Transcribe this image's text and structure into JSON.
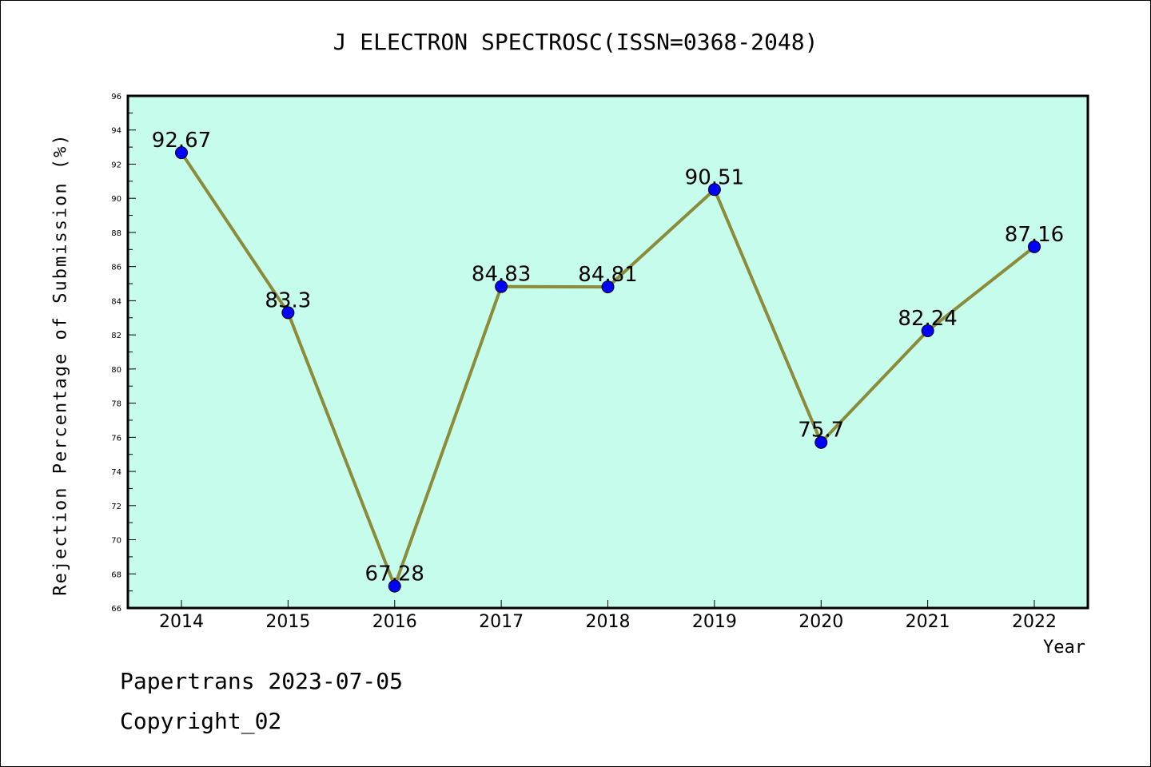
{
  "chart_data": {
    "type": "line",
    "title": "J ELECTRON SPECTROSC(ISSN=0368-2048)",
    "xlabel": "Year",
    "ylabel": "Rejection Percentage of Submission (%)",
    "categories": [
      "2014",
      "2015",
      "2016",
      "2017",
      "2018",
      "2019",
      "2020",
      "2021",
      "2022"
    ],
    "series": [
      {
        "values": [
          92.67,
          83.3,
          67.28,
          84.83,
          84.81,
          90.51,
          75.7,
          82.24,
          87.16
        ]
      }
    ],
    "data_labels": [
      "92.67",
      "83.3",
      "67.28",
      "84.83",
      "84.81",
      "90.51",
      "75.7",
      "82.24",
      "87.16"
    ],
    "ylim": [
      66,
      96
    ],
    "yticks": [
      66,
      68,
      70,
      72,
      74,
      76,
      78,
      80,
      82,
      84,
      86,
      88,
      90,
      92,
      94,
      96
    ],
    "grid": false,
    "colors": {
      "plot_background": "#c6fcec",
      "line": "#8b8b3a",
      "marker": "#0000ff"
    }
  },
  "footer": {
    "line1": "Papertrans 2023-07-05",
    "line2": "Copyright_02"
  }
}
